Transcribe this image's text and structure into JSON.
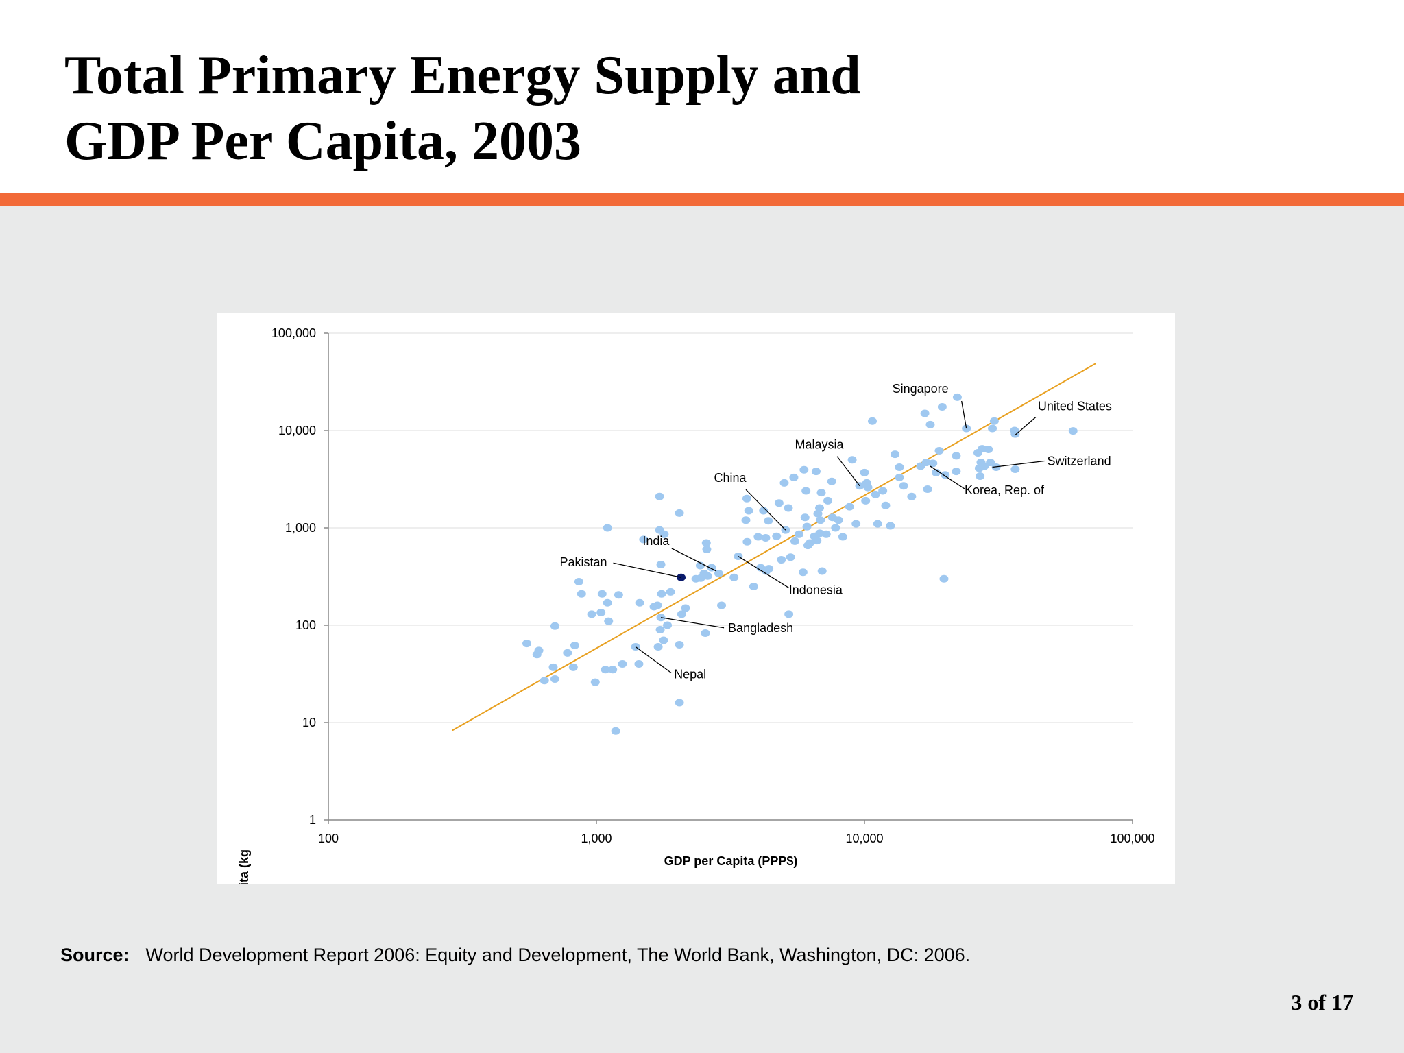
{
  "slide": {
    "title_line1": "Total Primary Energy Supply and",
    "title_line2": "GDP Per Capita, 2003",
    "accent_color": "#f26a38",
    "background_color": "#e9eaea",
    "source_label": "Source:",
    "source_text": "World Development Report 2006: Equity and Development, The World Bank, Washington, DC: 2006.",
    "page_number": "3 of 17"
  },
  "chart_data": {
    "type": "scatter",
    "title": "",
    "xlabel": "GDP per Capita (PPP$)",
    "ylabel": "TPES per Capita (kg ",
    "x_scale": "log",
    "y_scale": "log",
    "xlim": [
      100,
      100000
    ],
    "ylim": [
      1,
      100000
    ],
    "x_ticks": [
      100,
      1000,
      10000,
      100000
    ],
    "x_tick_labels": [
      "100",
      "1,000",
      "10,000",
      "100,000"
    ],
    "y_ticks": [
      1,
      10,
      100,
      1000,
      10000,
      100000
    ],
    "y_tick_labels": [
      "1",
      "10",
      "100",
      "1,000",
      "10,000",
      "100,000"
    ],
    "grid": "horizontal",
    "point_color": "#9fc8f0",
    "highlight_color": "#0a1a6b",
    "trend_color": "#e8a020",
    "trend_line": [
      [
        290,
        8.3
      ],
      [
        73000,
        49000
      ]
    ],
    "points": [
      [
        550,
        65
      ],
      [
        600,
        50
      ],
      [
        610,
        55
      ],
      [
        640,
        27
      ],
      [
        690,
        37
      ],
      [
        700,
        28
      ],
      [
        700,
        98
      ],
      [
        780,
        52
      ],
      [
        820,
        37
      ],
      [
        830,
        62
      ],
      [
        860,
        280
      ],
      [
        880,
        210
      ],
      [
        960,
        130
      ],
      [
        990,
        26
      ],
      [
        1040,
        135
      ],
      [
        1050,
        210
      ],
      [
        1080,
        35
      ],
      [
        1100,
        1000
      ],
      [
        1100,
        170
      ],
      [
        1110,
        110
      ],
      [
        1150,
        35
      ],
      [
        1180,
        8.2
      ],
      [
        1210,
        205
      ],
      [
        1250,
        40
      ],
      [
        1400,
        60
      ],
      [
        1440,
        40
      ],
      [
        1450,
        170
      ],
      [
        1500,
        760
      ],
      [
        1640,
        155
      ],
      [
        1690,
        160
      ],
      [
        1700,
        60
      ],
      [
        1720,
        950
      ],
      [
        1740,
        120
      ],
      [
        1730,
        90
      ],
      [
        1740,
        420
      ],
      [
        1750,
        210
      ],
      [
        1720,
        2100
      ],
      [
        1780,
        70
      ],
      [
        1790,
        860
      ],
      [
        1840,
        100
      ],
      [
        1890,
        220
      ],
      [
        2040,
        1420
      ],
      [
        2040,
        63
      ],
      [
        2040,
        16
      ],
      [
        2080,
        130
      ],
      [
        2150,
        150
      ],
      [
        2350,
        300
      ],
      [
        2440,
        410
      ],
      [
        2450,
        305
      ],
      [
        2520,
        340
      ],
      [
        2550,
        83
      ],
      [
        2570,
        700
      ],
      [
        2580,
        600
      ],
      [
        2600,
        320
      ],
      [
        2690,
        390
      ],
      [
        2860,
        340
      ],
      [
        2930,
        160
      ],
      [
        3260,
        310
      ],
      [
        3380,
        510
      ],
      [
        3610,
        1200
      ],
      [
        3640,
        2000
      ],
      [
        3650,
        720
      ],
      [
        3700,
        1500
      ],
      [
        3860,
        250
      ],
      [
        4010,
        810
      ],
      [
        4100,
        390
      ],
      [
        4200,
        1500
      ],
      [
        4280,
        790
      ],
      [
        4300,
        360
      ],
      [
        4380,
        1180
      ],
      [
        4400,
        380
      ],
      [
        4700,
        820
      ],
      [
        4800,
        1800
      ],
      [
        4900,
        470
      ],
      [
        5020,
        2900
      ],
      [
        5080,
        950
      ],
      [
        5200,
        1600
      ],
      [
        5220,
        130
      ],
      [
        5300,
        500
      ],
      [
        5450,
        3300
      ],
      [
        5500,
        730
      ],
      [
        5700,
        860
      ],
      [
        5900,
        350
      ],
      [
        5950,
        3950
      ],
      [
        6000,
        1280
      ],
      [
        6050,
        2400
      ],
      [
        6100,
        1030
      ],
      [
        6150,
        660
      ],
      [
        6260,
        700
      ],
      [
        6500,
        820
      ],
      [
        6600,
        3800
      ],
      [
        6650,
        740
      ],
      [
        6700,
        1400
      ],
      [
        6800,
        1600
      ],
      [
        6810,
        880
      ],
      [
        6850,
        1200
      ],
      [
        6900,
        2300
      ],
      [
        6950,
        360
      ],
      [
        7200,
        860
      ],
      [
        7300,
        1900
      ],
      [
        7550,
        3000
      ],
      [
        7600,
        1280
      ],
      [
        7800,
        1000
      ],
      [
        8000,
        1200
      ],
      [
        8300,
        810
      ],
      [
        8800,
        1650
      ],
      [
        9000,
        5000
      ],
      [
        9300,
        1100
      ],
      [
        9600,
        2700
      ],
      [
        10000,
        3700
      ],
      [
        10100,
        1900
      ],
      [
        10200,
        2900
      ],
      [
        10300,
        2600
      ],
      [
        10700,
        12500
      ],
      [
        11000,
        2200
      ],
      [
        11200,
        1100
      ],
      [
        11700,
        2400
      ],
      [
        12000,
        1700
      ],
      [
        12500,
        1050
      ],
      [
        13000,
        5700
      ],
      [
        13500,
        4200
      ],
      [
        13500,
        3300
      ],
      [
        14000,
        2700
      ],
      [
        15000,
        2100
      ],
      [
        16200,
        4300
      ],
      [
        16800,
        15000
      ],
      [
        17000,
        4700
      ],
      [
        17200,
        2500
      ],
      [
        17600,
        11500
      ],
      [
        18000,
        4600
      ],
      [
        18500,
        3700
      ],
      [
        19000,
        6200
      ],
      [
        19500,
        17500
      ],
      [
        19800,
        300
      ],
      [
        20000,
        3500
      ],
      [
        22000,
        5500
      ],
      [
        22000,
        3800
      ],
      [
        22200,
        22000
      ],
      [
        24000,
        10500
      ],
      [
        26500,
        5900
      ],
      [
        26800,
        4100
      ],
      [
        27000,
        3400
      ],
      [
        27200,
        4700
      ],
      [
        27500,
        6500
      ],
      [
        28000,
        4300
      ],
      [
        29000,
        6400
      ],
      [
        29500,
        4700
      ],
      [
        30000,
        10500
      ],
      [
        30500,
        12500
      ],
      [
        31000,
        4200
      ],
      [
        36300,
        10000
      ],
      [
        36500,
        9200
      ],
      [
        36500,
        4000
      ],
      [
        60000,
        9900
      ]
    ],
    "highlight_point": [
      2070,
      310
    ],
    "annotations": [
      {
        "label": "Singapore",
        "point": [
          24000,
          10500
        ]
      },
      {
        "label": "United States",
        "point": [
          36500,
          9000
        ]
      },
      {
        "label": "Switzerland",
        "point": [
          30000,
          4200
        ]
      },
      {
        "label": "Malaysia",
        "point": [
          9600,
          2700
        ]
      },
      {
        "label": "Korea, Rep. of",
        "point": [
          17600,
          4300
        ]
      },
      {
        "label": "China",
        "point": [
          5080,
          950
        ]
      },
      {
        "label": "India",
        "point": [
          2800,
          360
        ]
      },
      {
        "label": "Pakistan",
        "point": [
          2070,
          310
        ]
      },
      {
        "label": "Indonesia",
        "point": [
          3380,
          510
        ]
      },
      {
        "label": "Bangladesh",
        "point": [
          1740,
          120
        ]
      },
      {
        "label": "Nepal",
        "point": [
          1400,
          60
        ]
      }
    ]
  }
}
